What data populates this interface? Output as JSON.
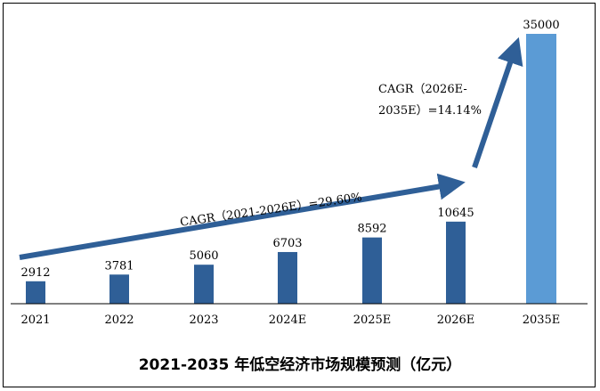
{
  "chart_data": {
    "type": "bar",
    "title": "2021-2035 年低空经济市场规模预测（亿元）",
    "categories": [
      "2021",
      "2022",
      "2023",
      "2024E",
      "2025E",
      "2026E",
      "2035E"
    ],
    "values": [
      2912,
      3781,
      5060,
      6703,
      8592,
      10645,
      35000
    ],
    "value_labels": [
      "2912",
      "3781",
      "5060",
      "6703",
      "8592",
      "10645",
      "35000"
    ],
    "bar_colors": [
      "#2f5f97",
      "#2f5f97",
      "#2f5f97",
      "#2f5f97",
      "#2f5f97",
      "#2f5f97",
      "#5b9bd5"
    ],
    "arrow_color": "#2f5f97",
    "annotations": [
      {
        "text": "CAGR（2021-2026E）=29.60%"
      },
      {
        "line1": "CAGR（2026E-",
        "line2": "2035E）=14.14%"
      }
    ],
    "ylim": [
      0,
      35000
    ],
    "grid": false,
    "legend": "none"
  }
}
